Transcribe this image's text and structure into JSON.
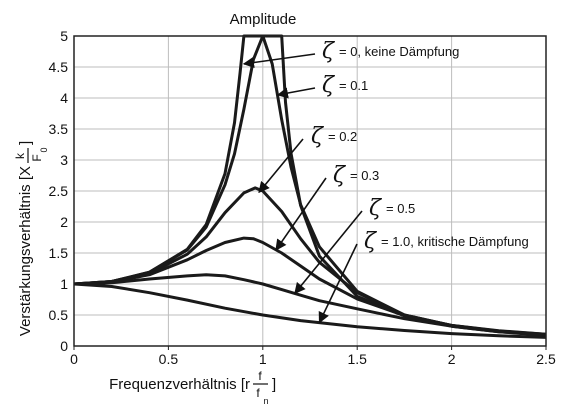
{
  "chart_data": {
    "type": "line",
    "title": "Amplitude",
    "xlabel": "Frequenzverhältnis [r",
    "xlabel_frac": {
      "num": "f",
      "den": "f",
      "den_sub": "n"
    },
    "xlabel_close": "]",
    "ylabel": "Verstärkungsverhältnis [X",
    "ylabel_frac": {
      "num": "k",
      "den": "F",
      "den_sub": "0"
    },
    "ylabel_close": "]",
    "xlim": [
      0,
      2.5
    ],
    "ylim": [
      0,
      5
    ],
    "x_ticks": [
      "0",
      "0.5",
      "1",
      "1.5",
      "2",
      "2.5"
    ],
    "y_ticks": [
      "0",
      "0.5",
      "1",
      "1.5",
      "2",
      "2.5",
      "3",
      "3.5",
      "4",
      "4.5",
      "5"
    ],
    "grid": true,
    "series": [
      {
        "name": "ζ = 0, keine Dämpfung",
        "zeta": 0,
        "x": [
          0,
          0.2,
          0.4,
          0.6,
          0.7,
          0.8,
          0.85,
          0.88,
          0.9,
          1.1,
          1.12,
          1.15,
          1.2,
          1.3,
          1.5,
          1.75,
          2.0,
          2.25,
          2.5
        ],
        "values": [
          1.0,
          1.04,
          1.19,
          1.56,
          1.96,
          2.78,
          3.6,
          4.41,
          5.0,
          5.0,
          3.93,
          3.1,
          2.27,
          1.45,
          0.8,
          0.485,
          0.333,
          0.246,
          0.19
        ]
      },
      {
        "name": "ζ = 0.1",
        "zeta": 0.1,
        "x": [
          0,
          0.2,
          0.4,
          0.6,
          0.7,
          0.8,
          0.85,
          0.9,
          0.95,
          1.0,
          1.05,
          1.1,
          1.15,
          1.2,
          1.3,
          1.5,
          1.75,
          2.0,
          2.25,
          2.5
        ],
        "values": [
          1.0,
          1.04,
          1.19,
          1.55,
          1.92,
          2.6,
          3.1,
          3.82,
          4.62,
          5.0,
          4.55,
          3.65,
          2.88,
          2.28,
          1.6,
          0.88,
          0.5,
          0.33,
          0.24,
          0.19
        ]
      },
      {
        "name": "ζ = 0.2",
        "zeta": 0.2,
        "x": [
          0,
          0.2,
          0.4,
          0.6,
          0.7,
          0.8,
          0.9,
          0.96,
          1.0,
          1.1,
          1.2,
          1.3,
          1.5,
          1.75,
          2.0,
          2.25,
          2.5
        ],
        "values": [
          1.0,
          1.04,
          1.17,
          1.48,
          1.76,
          2.15,
          2.47,
          2.55,
          2.5,
          2.17,
          1.73,
          1.35,
          0.86,
          0.5,
          0.33,
          0.24,
          0.18
        ]
      },
      {
        "name": "ζ = 0.3",
        "zeta": 0.3,
        "x": [
          0,
          0.2,
          0.4,
          0.6,
          0.7,
          0.8,
          0.9,
          0.95,
          1.0,
          1.1,
          1.2,
          1.3,
          1.5,
          1.75,
          2.0,
          2.25,
          2.5
        ],
        "values": [
          1.0,
          1.03,
          1.15,
          1.39,
          1.54,
          1.67,
          1.74,
          1.73,
          1.67,
          1.5,
          1.29,
          1.08,
          0.76,
          0.49,
          0.32,
          0.23,
          0.18
        ]
      },
      {
        "name": "ζ = 0.5",
        "zeta": 0.5,
        "x": [
          0,
          0.2,
          0.4,
          0.6,
          0.7,
          0.8,
          0.9,
          1.0,
          1.1,
          1.2,
          1.3,
          1.5,
          1.75,
          2.0,
          2.25,
          2.5
        ],
        "values": [
          1.0,
          1.02,
          1.08,
          1.13,
          1.15,
          1.13,
          1.07,
          1.0,
          0.91,
          0.82,
          0.73,
          0.6,
          0.44,
          0.32,
          0.23,
          0.17
        ]
      },
      {
        "name": "ζ = 1.0, kritische Dämpfung",
        "zeta": 1.0,
        "x": [
          0,
          0.2,
          0.4,
          0.6,
          0.8,
          1.0,
          1.2,
          1.5,
          1.75,
          2.0,
          2.25,
          2.5
        ],
        "values": [
          1.0,
          0.96,
          0.86,
          0.74,
          0.61,
          0.5,
          0.41,
          0.31,
          0.25,
          0.2,
          0.165,
          0.138
        ]
      }
    ],
    "annotations": [
      {
        "symbol": "ζ",
        "text": "= 0, keine Dämpfung",
        "target_x": 0.9,
        "target_y": 4.55
      },
      {
        "symbol": "ζ",
        "text": "= 0.1",
        "target_x": 1.08,
        "target_y": 4.05
      },
      {
        "symbol": "ζ",
        "text": "= 0.2",
        "target_x": 0.98,
        "target_y": 2.48
      },
      {
        "symbol": "ζ",
        "text": "= 0.3",
        "target_x": 1.07,
        "target_y": 1.55
      },
      {
        "symbol": "ζ",
        "text": "= 0.5",
        "target_x": 1.17,
        "target_y": 0.85
      },
      {
        "symbol": "ζ",
        "text": "= 1.0, kritische Dämpfung",
        "target_x": 1.3,
        "target_y": 0.38
      }
    ]
  }
}
